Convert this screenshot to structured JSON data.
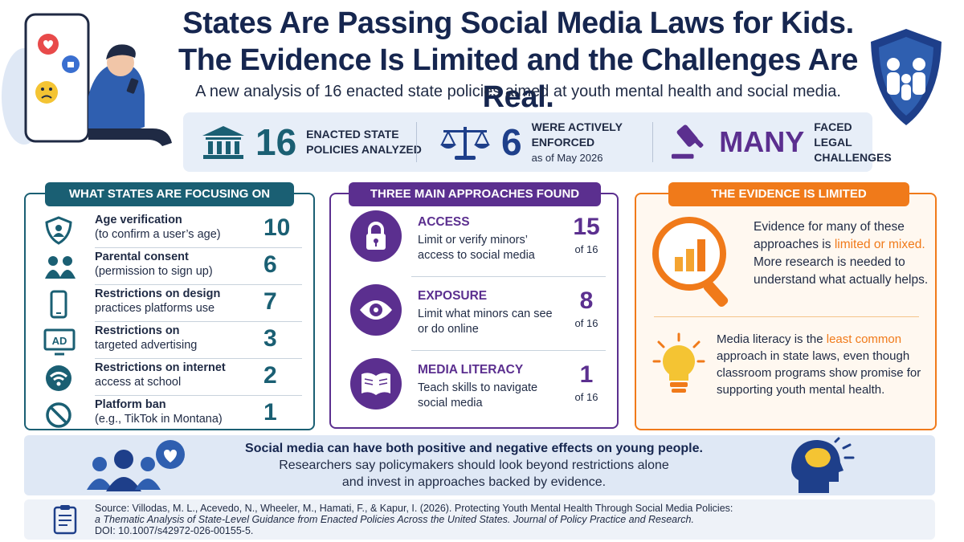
{
  "header": {
    "title_line1": "States Are Passing Social Media Laws for Kids.",
    "title_line2": "The Evidence Is Limited and the Challenges Are Real.",
    "subtitle": "A new analysis of 16 enacted state policies aimed at youth mental health and social media."
  },
  "stats": [
    {
      "icon": "courthouse-icon",
      "number": "16",
      "label1": "ENACTED STATE",
      "label2": "POLICIES ANALYZED",
      "color": "#1a5f73"
    },
    {
      "icon": "scales-icon",
      "number": "6",
      "label1": "WERE ACTIVELY",
      "label2": "ENFORCED",
      "label3": "as of May 2026",
      "color": "#1e3f8a"
    },
    {
      "icon": "gavel-icon",
      "number": "MANY",
      "label1": "FACED LEGAL",
      "label2": "CHALLENGES",
      "color": "#5b2f8f"
    }
  ],
  "focus": {
    "title": "WHAT STATES ARE FOCUSING ON",
    "items": [
      {
        "icon": "shield-user-icon",
        "line1": "Age verification",
        "line2": "(to confirm a user’s age)",
        "count": "10"
      },
      {
        "icon": "parents-icon",
        "line1": "Parental consent",
        "line2": "(permission to sign up)",
        "count": "6"
      },
      {
        "icon": "smartphone-icon",
        "line1": "Restrictions on design",
        "line2": "practices platforms use",
        "count": "7"
      },
      {
        "icon": "ad-icon",
        "line1": "Restrictions on",
        "line2": "targeted advertising",
        "count": "3"
      },
      {
        "icon": "wifi-icon",
        "line1": "Restrictions on internet",
        "line2": "access at school",
        "count": "2"
      },
      {
        "icon": "ban-icon",
        "line1": "Platform ban",
        "line2": "(e.g., TikTok in Montana)",
        "count": "1"
      }
    ]
  },
  "approaches": {
    "title": "THREE MAIN APPROACHES FOUND",
    "items": [
      {
        "icon": "lock-icon",
        "heading": "ACCESS",
        "line1": "Limit or verify minors’",
        "line2": "access to social media",
        "count": "15",
        "of": "of 16"
      },
      {
        "icon": "eye-icon",
        "heading": "EXPOSURE",
        "line1": "Limit what minors can see",
        "line2": "or do online",
        "count": "8",
        "of": "of 16"
      },
      {
        "icon": "book-icon",
        "heading": "MEDIA LITERACY",
        "line1": "Teach skills to navigate",
        "line2": "social media",
        "count": "1",
        "of": "of 16"
      }
    ]
  },
  "evidence": {
    "title": "THE EVIDENCE IS LIMITED",
    "p1_before": "Evidence for many of these approaches is ",
    "p1_highlight": "limited or mixed.",
    "p1_after": " More research is needed to understand what actually helps.",
    "p2_before": "Media literacy is the ",
    "p2_highlight": "least common",
    "p2_after": " approach in state laws, even though classroom programs show promise for supporting youth mental health."
  },
  "bottom": {
    "line1": "Social media can have both positive and negative effects on young people.",
    "line2": "Researchers say policymakers should look beyond restrictions alone",
    "line3": "and invest in approaches backed by evidence."
  },
  "source": {
    "line1": "Source: Villodas, M. L., Acevedo, N., Wheeler, M., Hamati, F., & Kapur, I. (2026). Protecting Youth Mental Health Through Social Media Policies:",
    "line2": "a Thematic Analysis of State-Level Guidance from Enacted Policies Across the United States. Journal of Policy Practice and Research.",
    "line3": "DOI: 10.1007/s42972-026-00155-5."
  },
  "colors": {
    "teal": "#1a5f73",
    "navy": "#16264f",
    "purple": "#5b2f8f",
    "orange": "#f07a1a",
    "light_blue": "#e7eef8"
  }
}
